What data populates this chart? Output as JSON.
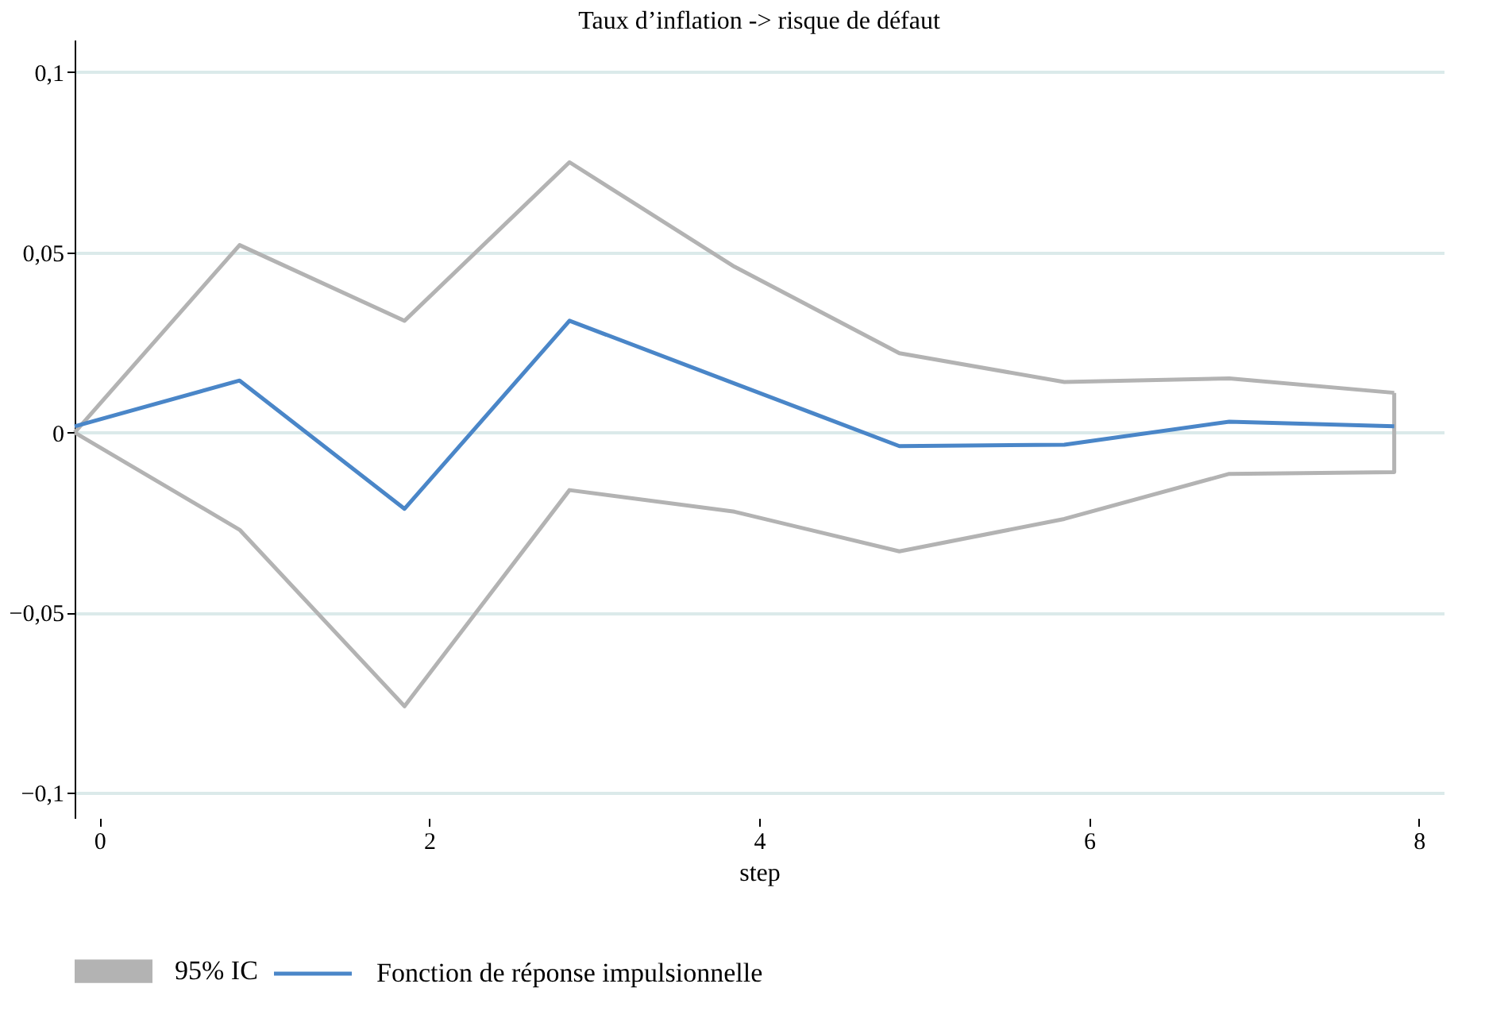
{
  "chart_data": {
    "type": "line",
    "title": "Taux d’inflation -> risque de défaut",
    "xlabel": "step",
    "x": [
      -0.15,
      0.85,
      1.85,
      2.85,
      3.85,
      4.85,
      5.85,
      6.85,
      7.85
    ],
    "series": [
      {
        "name": "95% IC",
        "color": "#b3b3b3",
        "values": [
          0,
          0.052,
          0.031,
          0.075,
          0.046,
          0.022,
          0.014,
          0.015,
          0.011
        ]
      },
      {
        "color": "#b3b3b3",
        "x": [
          -0.15,
          0.85,
          1.85,
          2.85,
          3.85,
          4.85,
          5.85,
          6.85,
          7.85,
          7.85
        ],
        "values": [
          0,
          -0.027,
          -0.076,
          -0.016,
          -0.022,
          -0.033,
          -0.024,
          -0.0115,
          -0.011,
          0.011
        ]
      },
      {
        "name": "Fonction de réponse impulsionnelle",
        "type": "line",
        "color": "#4a86c8",
        "values": [
          0.0017,
          0.0144,
          -0.0212,
          0.031,
          0.0136,
          -0.0038,
          -0.0034,
          0.003,
          0.0017
        ]
      }
    ],
    "xlim": [
      -0.15,
      8.15
    ],
    "xticks": [
      0,
      2,
      4,
      6,
      8
    ],
    "ylim": [
      -0.107,
      0.109
    ],
    "yticks": [
      {
        "value": -0.1,
        "label": "−0,1"
      },
      {
        "value": -0.05,
        "label": "−0,05"
      },
      0,
      {
        "value": 0.05,
        "label": "0,05"
      },
      {
        "value": 0.1,
        "label": "0,1"
      }
    ],
    "grid": "y",
    "legend": "bottom",
    "line_style": "solid",
    "marker": "none"
  }
}
